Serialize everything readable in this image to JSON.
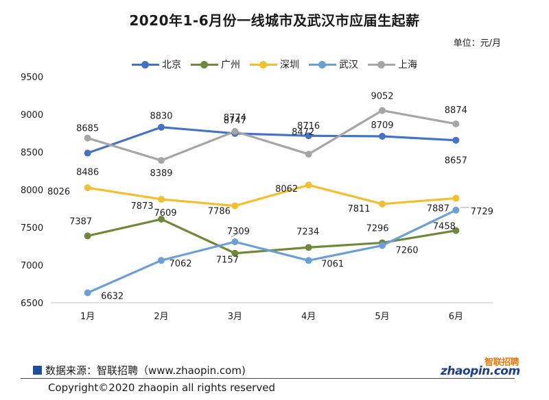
{
  "chart_data": {
    "type": "line",
    "title": "2020年1-6月份一线城市及武汉市应届生起薪",
    "unit": "单位：元/月",
    "categories": [
      "1月",
      "2月",
      "3月",
      "4月",
      "5月",
      "6月"
    ],
    "yticks": [
      "9500",
      "9000",
      "8500",
      "8000",
      "7500",
      "7000",
      "6500"
    ],
    "ylim": [
      6500,
      9500
    ],
    "grid": false,
    "legend_position": "top-center",
    "series": [
      {
        "name": "北京",
        "color": "#4472c4",
        "values": [
          8486,
          8830,
          8747,
          8716,
          8709,
          8657
        ],
        "labels": [
          "8486",
          "8830",
          "8747",
          "8716",
          "8709",
          "8657"
        ]
      },
      {
        "name": "广州",
        "color": "#70883a",
        "values": [
          7387,
          7609,
          7157,
          7234,
          7296,
          7458
        ],
        "labels": [
          "7387",
          "7609",
          "7157",
          "7234",
          "7296",
          "7458"
        ]
      },
      {
        "name": "深圳",
        "color": "#f2bf2f",
        "values": [
          8026,
          7873,
          7786,
          8062,
          7811,
          7887
        ],
        "labels": [
          "8026",
          "7873",
          "7786",
          "8062",
          "7811",
          "7887"
        ]
      },
      {
        "name": "武汉",
        "color": "#6a9fd8",
        "values": [
          6632,
          7062,
          7309,
          7061,
          7260,
          7729
        ],
        "labels": [
          "6632",
          "7062",
          "7309",
          "7061",
          "7260",
          "7729"
        ]
      },
      {
        "name": "上海",
        "color": "#a5a5a5",
        "values": [
          8685,
          8389,
          8774,
          8472,
          9052,
          8874
        ],
        "labels": [
          "8685",
          "8389",
          "8774",
          "8472",
          "9052",
          "8874"
        ]
      }
    ]
  },
  "footer": {
    "source": "数据来源：智联招聘（www.zhaopin.com)",
    "copyright": "Copyright©2020 zhaopin all rights reserved",
    "logo_cn": "智联招聘",
    "logo_en": "zhaopin.com"
  }
}
